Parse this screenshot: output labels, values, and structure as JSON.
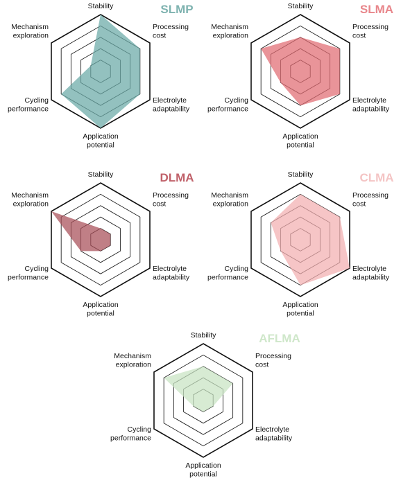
{
  "axes": [
    "Stability",
    "Processing cost",
    "Electrolyte adaptability",
    "Application potential",
    "Cycling performance",
    "Mechanism exploration"
  ],
  "axis_label_lines": [
    [
      "Stability"
    ],
    [
      "Processing",
      "cost"
    ],
    [
      "Electrolyte",
      "adaptability"
    ],
    [
      "Application",
      "potential"
    ],
    [
      "Cycling",
      "performance"
    ],
    [
      "Mechanism",
      "exploration"
    ]
  ],
  "chart_data": [
    {
      "type": "radar",
      "title": "SLMP",
      "color": "#6aa9a6",
      "title_color": "#7fb3b0",
      "axes": [
        "Stability",
        "Processing cost",
        "Electrolyte adaptability",
        "Application potential",
        "Cycling performance",
        "Mechanism exploration"
      ],
      "values": [
        5,
        4,
        4,
        5,
        4,
        1
      ],
      "range": [
        0,
        5
      ]
    },
    {
      "type": "radar",
      "title": "SLMA",
      "color": "#e06b72",
      "title_color": "#e8868b",
      "axes": [
        "Stability",
        "Processing cost",
        "Electrolyte adaptability",
        "Application potential",
        "Cycling performance",
        "Mechanism exploration"
      ],
      "values": [
        3,
        4,
        4,
        3,
        2,
        4
      ],
      "range": [
        0,
        5
      ]
    },
    {
      "type": "radar",
      "title": "DLMA",
      "color": "#a84e57",
      "title_color": "#c0616a",
      "axes": [
        "Stability",
        "Processing cost",
        "Electrolyte adaptability",
        "Application potential",
        "Cycling performance",
        "Mechanism exploration"
      ],
      "values": [
        1,
        1,
        1,
        1,
        2,
        5
      ],
      "range": [
        0,
        5
      ]
    },
    {
      "type": "radar",
      "title": "CLMA",
      "color": "#f2aeb0",
      "title_color": "#f4c4c4",
      "axes": [
        "Stability",
        "Processing cost",
        "Electrolyte adaptability",
        "Application potential",
        "Cycling performance",
        "Mechanism exploration"
      ],
      "values": [
        4,
        4,
        5,
        4,
        2,
        3
      ],
      "range": [
        0,
        5
      ]
    },
    {
      "type": "radar",
      "title": "AFLMA",
      "color": "#c8e3c2",
      "title_color": "#cfe7ca",
      "axes": [
        "Stability",
        "Processing cost",
        "Electrolyte adaptability",
        "Application potential",
        "Cycling performance",
        "Mechanism exploration"
      ],
      "values": [
        3,
        3,
        1,
        1,
        1,
        4
      ],
      "range": [
        0,
        5
      ]
    }
  ]
}
